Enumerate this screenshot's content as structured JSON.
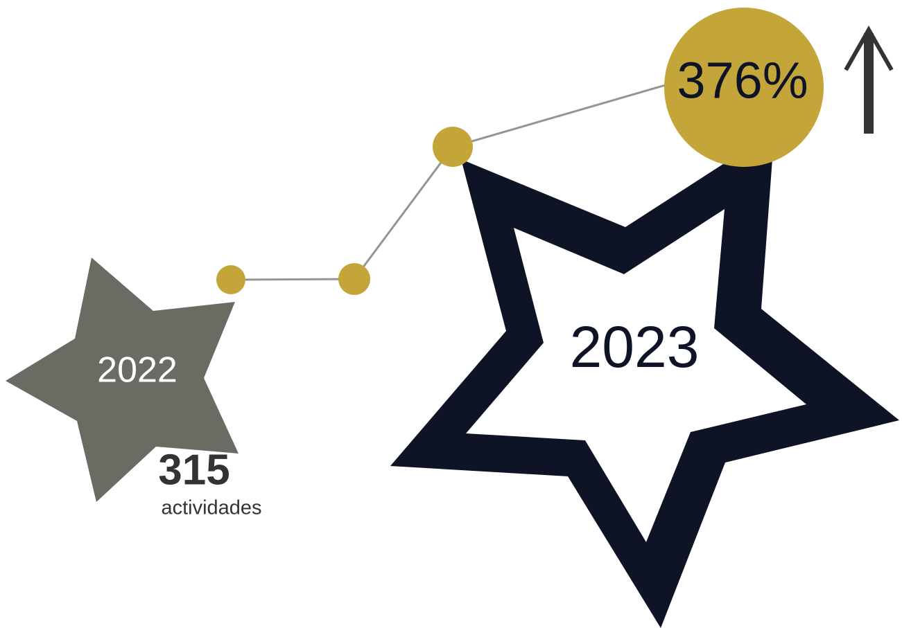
{
  "stars": [
    {
      "label": "2022",
      "count": "315",
      "unit": "actividades"
    },
    {
      "label": "2023"
    }
  ],
  "growth": "376%"
}
